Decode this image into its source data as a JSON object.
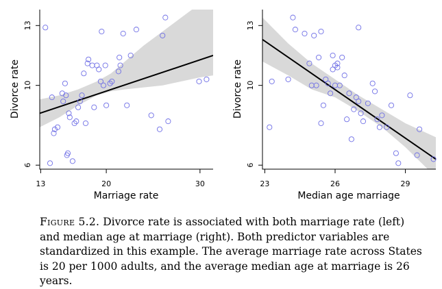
{
  "caption": {
    "label": "Figure 5.2.",
    "text": "Divorce rate is associated with both marriage rate (left) and median age at marriage (right). Both predictor variables are standardized in this example. The average marriage rate across States is 20 per 1000 adults, and the average median age at marriage is 26 years."
  },
  "chart_data": [
    {
      "type": "scatter",
      "xlabel": "Marriage rate",
      "ylabel": "Divorce rate",
      "xlim": [
        12.9,
        31.4
      ],
      "ylim": [
        5.8,
        13.8
      ],
      "xticks": [
        13,
        20,
        30
      ],
      "yticks": [
        6,
        10,
        13
      ],
      "grid": false,
      "colors": {
        "points": "#6f6fe6",
        "line": "#000000",
        "band": "#d9d9d9"
      },
      "points": [
        [
          13.5,
          12.9
        ],
        [
          14.0,
          6.1
        ],
        [
          14.2,
          9.4
        ],
        [
          14.4,
          7.6
        ],
        [
          14.5,
          7.8
        ],
        [
          14.8,
          7.9
        ],
        [
          15.3,
          9.6
        ],
        [
          15.4,
          9.2
        ],
        [
          15.6,
          10.1
        ],
        [
          15.7,
          9.5
        ],
        [
          15.8,
          6.5
        ],
        [
          15.9,
          6.6
        ],
        [
          16.0,
          8.6
        ],
        [
          16.1,
          8.4
        ],
        [
          16.4,
          6.2
        ],
        [
          16.6,
          8.1
        ],
        [
          16.8,
          8.2
        ],
        [
          17.0,
          8.9
        ],
        [
          17.2,
          9.2
        ],
        [
          17.4,
          9.5
        ],
        [
          17.6,
          10.6
        ],
        [
          17.8,
          8.1
        ],
        [
          18.0,
          11.1
        ],
        [
          18.1,
          11.3
        ],
        [
          18.5,
          11.0
        ],
        [
          18.7,
          8.9
        ],
        [
          19.0,
          11.0
        ],
        [
          19.2,
          10.8
        ],
        [
          19.4,
          10.2
        ],
        [
          19.5,
          12.7
        ],
        [
          19.7,
          10.0
        ],
        [
          19.9,
          11.0
        ],
        [
          20.0,
          9.0
        ],
        [
          20.4,
          10.1
        ],
        [
          20.6,
          10.2
        ],
        [
          21.3,
          10.7
        ],
        [
          21.4,
          11.4
        ],
        [
          21.5,
          11.0
        ],
        [
          21.8,
          12.6
        ],
        [
          22.2,
          9.0
        ],
        [
          22.6,
          11.5
        ],
        [
          23.2,
          12.8
        ],
        [
          24.8,
          8.5
        ],
        [
          25.7,
          7.8
        ],
        [
          26.0,
          12.5
        ],
        [
          26.3,
          13.4
        ],
        [
          26.6,
          8.2
        ],
        [
          29.9,
          10.2
        ],
        [
          30.7,
          10.3
        ]
      ],
      "fit": {
        "start": [
          12.9,
          8.6
        ],
        "end": [
          31.4,
          11.5
        ]
      },
      "band": {
        "x": [
          12.9,
          15,
          17,
          19,
          20.5,
          22,
          24,
          26,
          28,
          30,
          31.4
        ],
        "upper": [
          9.3,
          9.5,
          9.8,
          10.2,
          10.6,
          11.2,
          12.0,
          12.7,
          13.4,
          14.1,
          14.7
        ],
        "lower": [
          7.9,
          8.4,
          9.0,
          9.5,
          9.7,
          9.8,
          9.9,
          10.0,
          10.2,
          10.4,
          10.5
        ]
      }
    },
    {
      "type": "scatter",
      "xlabel": "Median age marriage",
      "ylabel": "Divorce rate",
      "xlim": [
        22.9,
        30.3
      ],
      "ylim": [
        5.8,
        13.8
      ],
      "xticks": [
        23,
        26,
        29
      ],
      "yticks": [
        6,
        10,
        13
      ],
      "grid": false,
      "colors": {
        "points": "#6f6fe6",
        "line": "#000000",
        "band": "#d9d9d9"
      },
      "points": [
        [
          23.2,
          7.9
        ],
        [
          23.3,
          10.2
        ],
        [
          24.0,
          10.3
        ],
        [
          24.2,
          13.4
        ],
        [
          24.3,
          12.8
        ],
        [
          24.7,
          12.6
        ],
        [
          24.9,
          11.1
        ],
        [
          25.0,
          10.0
        ],
        [
          25.1,
          12.5
        ],
        [
          25.2,
          10.0
        ],
        [
          25.3,
          11.4
        ],
        [
          25.4,
          12.7
        ],
        [
          25.4,
          8.1
        ],
        [
          25.5,
          9.0
        ],
        [
          25.6,
          10.3
        ],
        [
          25.7,
          10.1
        ],
        [
          25.8,
          9.6
        ],
        [
          25.9,
          11.5
        ],
        [
          25.9,
          10.8
        ],
        [
          26.0,
          10.0
        ],
        [
          26.0,
          11.0
        ],
        [
          26.1,
          11.1
        ],
        [
          26.1,
          10.9
        ],
        [
          26.2,
          10.0
        ],
        [
          26.3,
          11.4
        ],
        [
          26.4,
          10.5
        ],
        [
          26.5,
          8.3
        ],
        [
          26.6,
          9.6
        ],
        [
          26.7,
          7.3
        ],
        [
          26.8,
          8.8
        ],
        [
          26.9,
          9.4
        ],
        [
          27.0,
          12.9
        ],
        [
          27.0,
          9.2
        ],
        [
          27.1,
          8.6
        ],
        [
          27.2,
          8.2
        ],
        [
          27.4,
          9.1
        ],
        [
          27.6,
          10.1
        ],
        [
          27.7,
          9.7
        ],
        [
          27.8,
          8.3
        ],
        [
          27.9,
          7.9
        ],
        [
          28.0,
          8.5
        ],
        [
          28.2,
          7.9
        ],
        [
          28.4,
          9.0
        ],
        [
          28.6,
          6.6
        ],
        [
          28.7,
          6.1
        ],
        [
          29.2,
          9.5
        ],
        [
          29.5,
          6.5
        ],
        [
          29.6,
          7.8
        ],
        [
          30.2,
          6.3
        ]
      ],
      "fit": {
        "start": [
          22.9,
          12.3
        ],
        "end": [
          30.3,
          6.3
        ]
      },
      "band": {
        "x": [
          22.9,
          24,
          25,
          26,
          27,
          28,
          29,
          30.3
        ],
        "upper": [
          13.4,
          12.1,
          11.1,
          10.3,
          9.5,
          8.8,
          8.1,
          7.4
        ],
        "lower": [
          11.2,
          10.5,
          9.8,
          9.4,
          8.7,
          7.9,
          6.9,
          5.4
        ]
      }
    }
  ]
}
